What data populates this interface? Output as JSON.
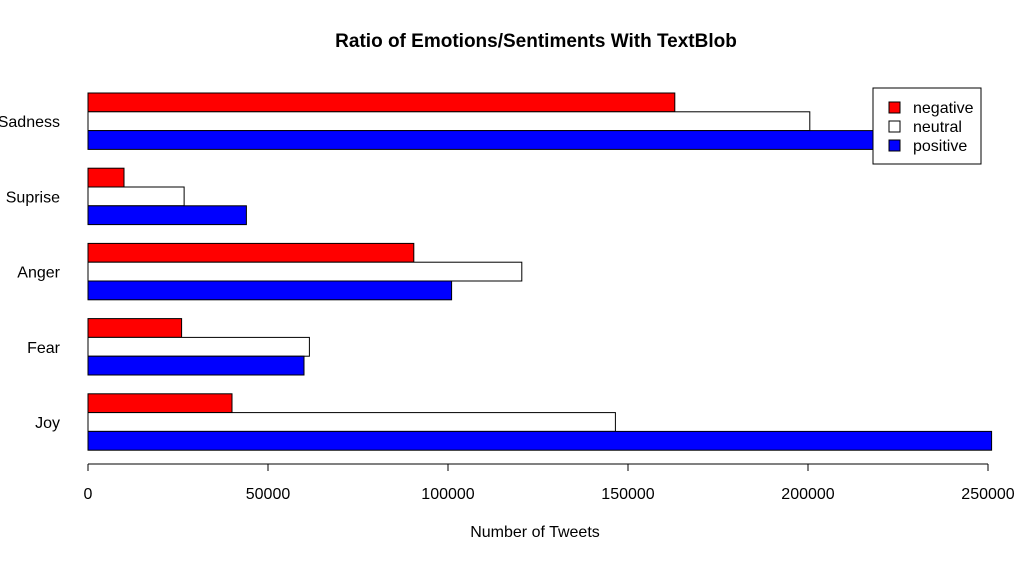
{
  "chart_data": {
    "type": "bar",
    "orientation": "horizontal",
    "title": "Ratio of Emotions/Sentiments With TextBlob",
    "xlabel": "Number of Tweets",
    "ylabel": "",
    "categories": [
      "Joy",
      "Fear",
      "Anger",
      "Suprise",
      "Sadness"
    ],
    "xlim": [
      0,
      250000
    ],
    "x_ticks": [
      0,
      50000,
      100000,
      150000,
      200000,
      250000
    ],
    "x_tick_labels": [
      "0",
      "50000",
      "100000",
      "150000",
      "200000",
      "250000"
    ],
    "series": [
      {
        "name": "negative",
        "color": "#ff0000",
        "values": [
          40000,
          26000,
          90500,
          10000,
          163000
        ]
      },
      {
        "name": "neutral",
        "color": "#ffffff",
        "values": [
          146500,
          61500,
          120500,
          26700,
          200500
        ]
      },
      {
        "name": "positive",
        "color": "#0000ff",
        "values": [
          251000,
          60000,
          101000,
          44000,
          226000
        ]
      }
    ],
    "legend_position": "top-right",
    "grid": false
  }
}
